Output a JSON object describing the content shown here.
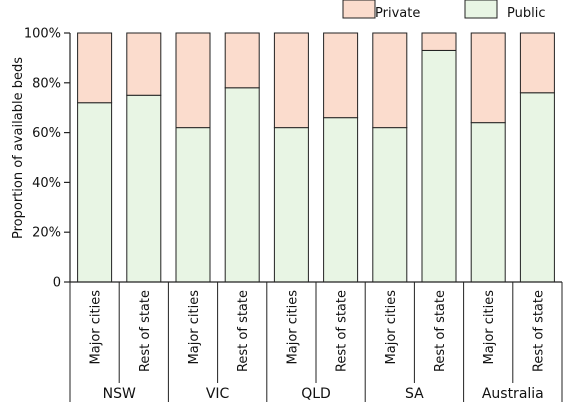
{
  "chart_data": {
    "type": "bar",
    "stacked": true,
    "ylabel": "Proportion of available beds",
    "ylim": [
      0,
      100
    ],
    "yticks": [
      "0",
      "20%",
      "40%",
      "60%",
      "80%",
      "100%"
    ],
    "groups": [
      {
        "name": "NSW",
        "categories": [
          "Major cities",
          "Rest of state"
        ]
      },
      {
        "name": "VIC",
        "categories": [
          "Major cities",
          "Rest of state"
        ]
      },
      {
        "name": "QLD",
        "categories": [
          "Major cities",
          "Rest of state"
        ]
      },
      {
        "name": "SA",
        "categories": [
          "Major cities",
          "Rest of state"
        ]
      },
      {
        "name": "Australia",
        "categories": [
          "Major cities",
          "Rest of state"
        ]
      }
    ],
    "series": [
      {
        "name": "Public",
        "color": "#e8f5e4",
        "values": [
          72,
          75,
          62,
          78,
          62,
          66,
          62,
          93,
          64,
          76
        ]
      },
      {
        "name": "Private",
        "color": "#fbdccd",
        "values": [
          28,
          25,
          38,
          22,
          38,
          34,
          38,
          7,
          36,
          24
        ]
      }
    ],
    "legend": {
      "position": "top-right",
      "order": [
        "Private",
        "Public"
      ]
    },
    "grid": false
  }
}
